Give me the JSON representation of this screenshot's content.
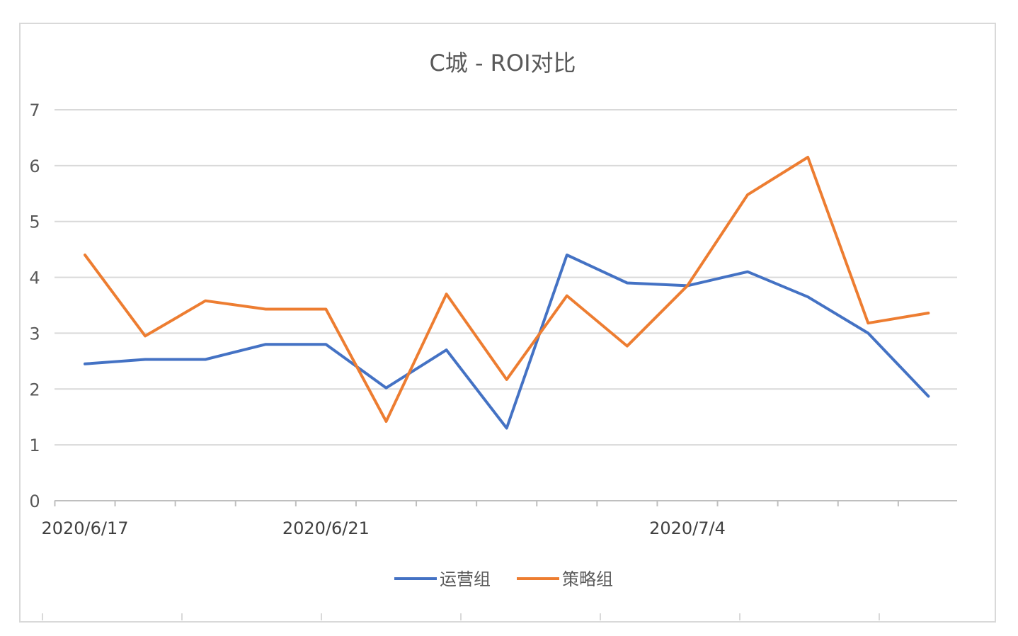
{
  "chart_data": {
    "type": "line",
    "title": "C城 - ROI对比",
    "xlabel": "",
    "ylabel": "",
    "x_tick_labels": [
      {
        "index": 0,
        "label": "2020/6/17"
      },
      {
        "index": 4,
        "label": "2020/6/21"
      },
      {
        "index": 10,
        "label": "2020/7/4"
      }
    ],
    "categories_count": 15,
    "ylim": [
      0,
      7
    ],
    "yticks": [
      0,
      1,
      2,
      3,
      4,
      5,
      6,
      7
    ],
    "grid": true,
    "legend": "bottom",
    "series": [
      {
        "name": "运营组",
        "color": "#4472c4",
        "values": [
          2.45,
          2.53,
          2.53,
          2.8,
          2.8,
          2.02,
          2.7,
          1.3,
          4.4,
          3.9,
          3.85,
          4.1,
          3.65,
          3.0,
          1.87
        ]
      },
      {
        "name": "策略组",
        "color": "#ed7d31",
        "values": [
          4.4,
          2.95,
          3.58,
          3.43,
          3.43,
          1.42,
          3.7,
          2.17,
          3.67,
          2.77,
          3.85,
          5.48,
          6.15,
          3.18,
          3.36
        ]
      }
    ]
  }
}
